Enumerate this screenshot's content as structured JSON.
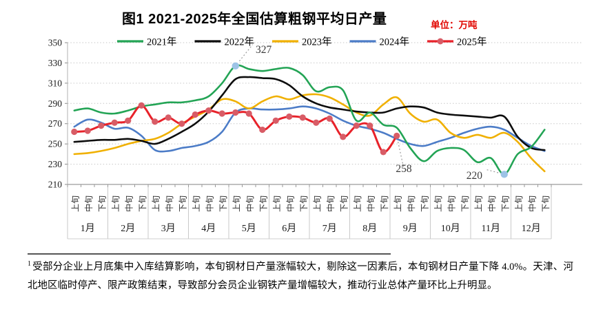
{
  "header": {
    "title": "图1 2021-2025年全国估算粗钢平均日产量",
    "unit_label": "单位：万吨"
  },
  "chart_data": {
    "type": "line",
    "title": "2021-2025年全国估算粗钢平均日产量",
    "unit": "万吨",
    "ylim": [
      210,
      350
    ],
    "y_ticks": [
      350,
      330,
      310,
      290,
      270,
      250,
      230,
      210
    ],
    "grid": "dotted-horizontal",
    "legend_position": "top",
    "months": [
      "1月",
      "2月",
      "3月",
      "4月",
      "5月",
      "6月",
      "7月",
      "8月",
      "9月",
      "10月",
      "11月",
      "12月"
    ],
    "periods_per_month": [
      "上旬",
      "中旬",
      "下旬"
    ],
    "categories": [
      "1月上旬",
      "1月中旬",
      "1月下旬",
      "2月上旬",
      "2月中旬",
      "2月下旬",
      "3月上旬",
      "3月中旬",
      "3月下旬",
      "4月上旬",
      "4月中旬",
      "4月下旬",
      "5月上旬",
      "5月中旬",
      "5月下旬",
      "6月上旬",
      "6月中旬",
      "6月下旬",
      "7月上旬",
      "7月中旬",
      "7月下旬",
      "8月上旬",
      "8月中旬",
      "8月下旬",
      "9月上旬",
      "9月中旬",
      "9月下旬",
      "10月上旬",
      "10月中旬",
      "10月下旬",
      "11月上旬",
      "11月中旬",
      "11月下旬",
      "12月上旬",
      "12月中旬",
      "12月下旬"
    ],
    "series": [
      {
        "name": "2021年",
        "color": "#23a455",
        "values": [
          283,
          285,
          281,
          280,
          283,
          287,
          289,
          291,
          291,
          293,
          297,
          310,
          327,
          324,
          322,
          324,
          325,
          318,
          302,
          306,
          303,
          273,
          281,
          269,
          266,
          246,
          233,
          243,
          246,
          244,
          232,
          236,
          220,
          240,
          247,
          264
        ]
      },
      {
        "name": "2022年",
        "color": "#0d0d0d",
        "values": [
          252,
          253,
          254,
          254,
          255,
          253,
          250,
          255,
          262,
          270,
          282,
          298,
          314,
          316,
          315,
          314,
          308,
          297,
          290,
          286,
          284,
          282,
          281,
          281,
          285,
          287,
          286,
          281,
          279,
          278,
          277,
          276,
          277,
          257,
          246,
          244
        ]
      },
      {
        "name": "2023年",
        "color": "#f0b000",
        "values": [
          240,
          241,
          243,
          246,
          250,
          253,
          255,
          261,
          270,
          277,
          284,
          294,
          292,
          285,
          292,
          297,
          294,
          298,
          299,
          296,
          289,
          281,
          278,
          289,
          296,
          280,
          272,
          274,
          261,
          256,
          259,
          256,
          261,
          252,
          236,
          223
        ]
      },
      {
        "name": "2024年",
        "color": "#4c7cc7",
        "values": [
          267,
          274,
          271,
          265,
          266,
          258,
          244,
          243,
          246,
          248,
          252,
          262,
          281,
          285,
          284,
          284,
          285,
          287,
          285,
          280,
          273,
          268,
          265,
          261,
          255,
          250,
          248,
          252,
          256,
          261,
          265,
          267,
          264,
          256,
          248,
          243
        ]
      },
      {
        "name": "2025年",
        "color": "#e8222a",
        "marker": "circle",
        "marker_color": "#d85c66",
        "values": [
          262,
          263,
          268,
          271,
          273,
          288,
          272,
          276,
          270,
          279,
          283,
          280,
          281,
          280,
          264,
          273,
          277,
          276,
          271,
          275,
          257,
          268,
          268,
          242,
          258
        ]
      }
    ],
    "annotations": [
      {
        "label": "327",
        "series": "2021年",
        "point_index": 12,
        "category": "5月上旬",
        "value": 327,
        "highlight_marker": true,
        "marker_color": "#9dc3e6",
        "label_pos": [
          371,
          77
        ],
        "anchor": "start"
      },
      {
        "label": "258",
        "series": "2025年",
        "point_index": 24,
        "category": "9月上旬",
        "value": 258,
        "highlight_marker": false,
        "label_pos": [
          586,
          250
        ],
        "anchor": "middle"
      },
      {
        "label": "220",
        "series": "2021年",
        "point_index": 32,
        "category": "11月下旬",
        "value": 220,
        "highlight_marker": true,
        "marker_color": "#9dc3e6",
        "label_pos": [
          700,
          260
        ],
        "anchor": "end"
      }
    ]
  },
  "footnote": {
    "mark": "1",
    "text": "受部分企业上月底集中入库结算影响，本旬钢材日产量涨幅较大，剔除这一因素后，本旬钢材日产量下降 4.0%。天津、河北地区临时停产、限产政策结束，导致部分会员企业钢铁产量增幅较大，推动行业总体产量环比上升明显。"
  }
}
